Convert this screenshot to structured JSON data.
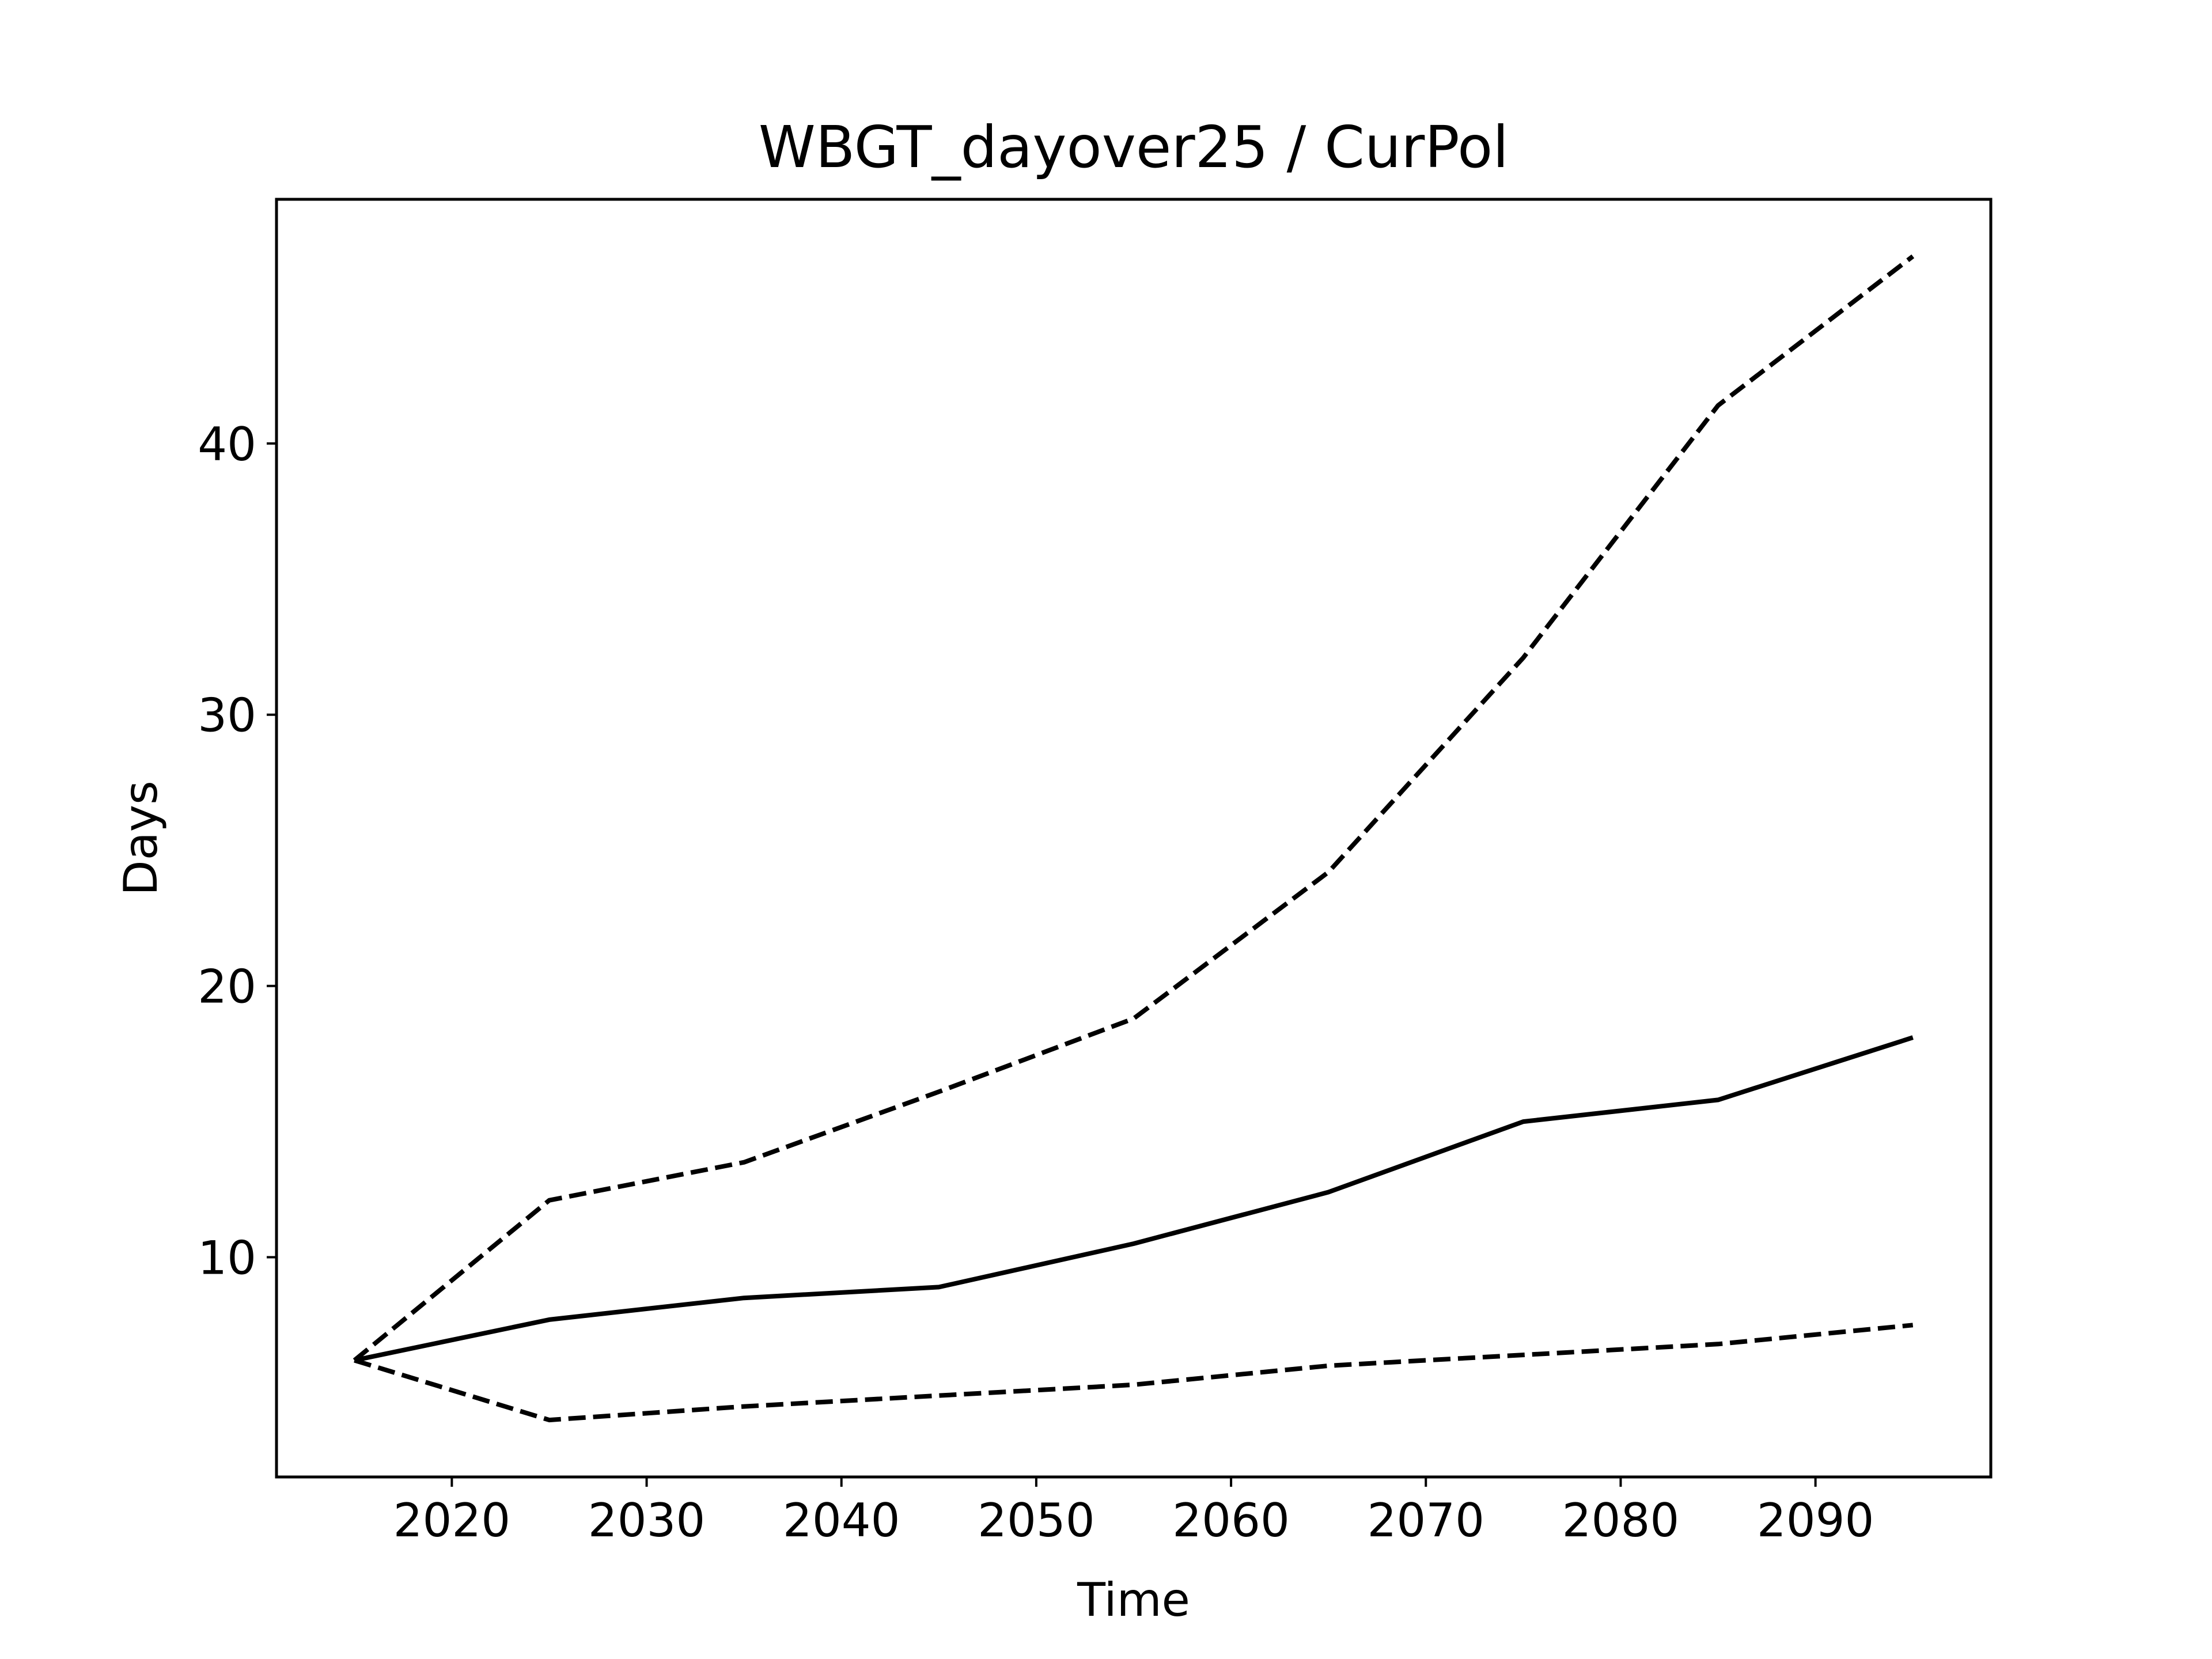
{
  "chart_data": {
    "type": "line",
    "title": "WBGT_dayover25 / CurPol",
    "xlabel": "Time",
    "ylabel": "Days",
    "xlim": [
      2011,
      2099
    ],
    "ylim": [
      1.9,
      49.0
    ],
    "xticks": [
      2020,
      2030,
      2040,
      2050,
      2060,
      2070,
      2080,
      2090
    ],
    "yticks": [
      10,
      20,
      30,
      40
    ],
    "grid": false,
    "legend": "none",
    "x": [
      2015,
      2025,
      2035,
      2045,
      2055,
      2065,
      2075,
      2085,
      2095
    ],
    "series": [
      {
        "style": "solid",
        "color": "#000000",
        "values": [
          6.2,
          7.7,
          8.5,
          8.9,
          10.5,
          12.4,
          15.0,
          15.8,
          18.1
        ]
      },
      {
        "style": "dashed",
        "color": "#000000",
        "values": [
          6.2,
          12.1,
          13.5,
          16.1,
          18.8,
          24.2,
          32.1,
          41.4,
          46.9
        ]
      },
      {
        "style": "dashed",
        "color": "#000000",
        "values": [
          6.2,
          4.0,
          4.5,
          4.9,
          5.3,
          6.0,
          6.4,
          6.8,
          7.5
        ]
      }
    ]
  }
}
